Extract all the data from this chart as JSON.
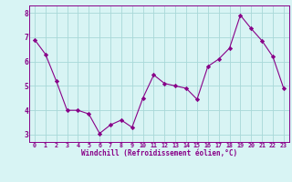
{
  "x": [
    0,
    1,
    2,
    3,
    4,
    5,
    6,
    7,
    8,
    9,
    10,
    11,
    12,
    13,
    14,
    15,
    16,
    17,
    18,
    19,
    20,
    21,
    22,
    23
  ],
  "y": [
    6.9,
    6.3,
    5.2,
    4.0,
    4.0,
    3.85,
    3.05,
    3.4,
    3.6,
    3.3,
    4.5,
    5.45,
    5.1,
    5.0,
    4.9,
    4.45,
    5.8,
    6.1,
    6.55,
    7.9,
    7.35,
    6.85,
    6.2,
    4.9
  ],
  "line_color": "#880088",
  "marker": "D",
  "marker_size": 2.2,
  "bg_color": "#d8f4f4",
  "grid_color": "#a8d8d8",
  "xlabel": "Windchill (Refroidissement éolien,°C)",
  "xlim": [
    -0.5,
    23.5
  ],
  "ylim": [
    2.7,
    8.3
  ],
  "yticks": [
    3,
    4,
    5,
    6,
    7,
    8
  ],
  "xticks": [
    0,
    1,
    2,
    3,
    4,
    5,
    6,
    7,
    8,
    9,
    10,
    11,
    12,
    13,
    14,
    15,
    16,
    17,
    18,
    19,
    20,
    21,
    22,
    23
  ],
  "tick_color": "#880088",
  "axis_color": "#880088",
  "xlabel_fontsize": 5.5,
  "tick_fontsize_x": 4.8,
  "tick_fontsize_y": 5.8
}
